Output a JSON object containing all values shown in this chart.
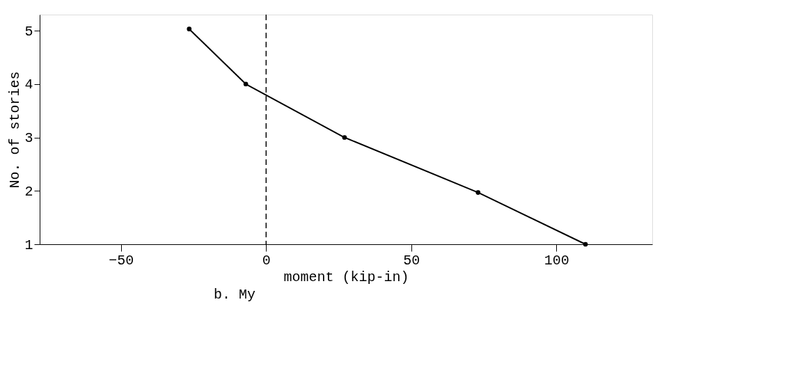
{
  "chart_data": {
    "type": "line",
    "xlabel": "moment (kip-in)",
    "ylabel": "No. of stories",
    "x": [
      -26.5,
      -7,
      27,
      73,
      110
    ],
    "series": [
      {
        "color": "#000000",
        "values": [
          5.03,
          4,
          3,
          1.97,
          1
        ]
      }
    ],
    "xlim": [
      -78,
      133
    ],
    "ylim": [
      1,
      5.3
    ],
    "xticks": [
      -50,
      0,
      50,
      100
    ],
    "yticks": [
      1,
      2,
      3,
      4,
      5
    ],
    "ref_lines": [
      {
        "axis": "x",
        "value": 0,
        "line_style": "dashed",
        "color": "#000000"
      }
    ],
    "annotations": [
      "b. My"
    ],
    "grid": false,
    "marker": "circle",
    "line_style": "solid"
  }
}
